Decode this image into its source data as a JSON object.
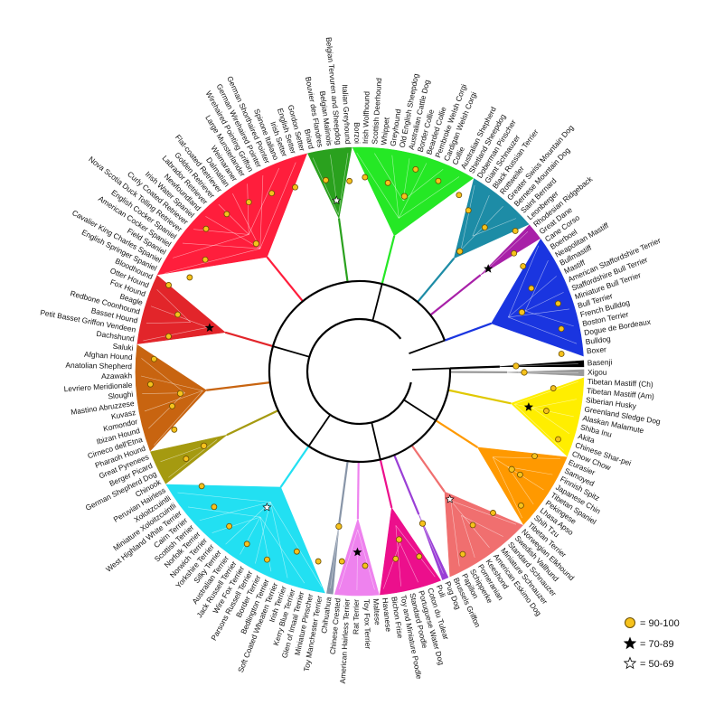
{
  "legend": [
    {
      "symbol": "circle",
      "label": "= 90-100",
      "color": "#f6c21c"
    },
    {
      "symbol": "star-black",
      "label": "= 70-89",
      "color": "#000000"
    },
    {
      "symbol": "star-white",
      "label": "= 50-69",
      "color": "#ffffff"
    }
  ],
  "clades": [
    {
      "color": "#000000",
      "labels": [
        "Basenji"
      ]
    },
    {
      "color": "#9a9a9a",
      "labels": [
        "Xigou"
      ]
    },
    {
      "color": "#ffee00",
      "labels": [
        "Tibetan Mastiff (Ch)",
        "Tibetan Mastiff (Am)",
        "Siberian Husky",
        "Greenland Sledge Dog",
        "Alaskan Malamute",
        "Shiba Inu",
        "Akita",
        "Chinese Shar-pei",
        "Chow Chow"
      ]
    },
    {
      "color": "#ff9900",
      "labels": [
        "Eurasier",
        "Samoyed",
        "Finnish Spitz",
        "Japanese Chin",
        "Tibetan Spaniel",
        "Pekingese",
        "Lhasa Apso",
        "Shih Tzu",
        "Tibetan Terrier"
      ]
    },
    {
      "color": "#f06f6f",
      "labels": [
        "Norwegian Elkhound",
        "Swedish Vallhund",
        "Standard Schnauzer",
        "Miniature Schnauzer",
        "American Eskimo Dog",
        "Keeshond",
        "Pomeranian",
        "Schipperke",
        "Papillon",
        "Brussels Griffon"
      ]
    },
    {
      "color": "#9a3fd6",
      "labels": [
        "Pug Dog"
      ]
    },
    {
      "color": "#ec0f8c",
      "labels": [
        "Puli",
        "Coton du Tulear",
        "Portuguese Water Dog",
        "Standard Poodle",
        "Toy and Miniature Poodle",
        "Bichon Frise",
        "Havanese"
      ]
    },
    {
      "color": "#ee82ee",
      "labels": [
        "Maltese",
        "Toy Fox Terrier",
        "Rat Terrier",
        "American Hairless Terrier",
        "Chinese Crested"
      ]
    },
    {
      "color": "#8895a8",
      "labels": [
        "Chihuahua"
      ]
    },
    {
      "color": "#22e0f2",
      "labels": [
        "Toy Manchester Terrier",
        "Miniature Pinscher",
        "Glen of Imaal Terrier",
        "Kerry Blue Terrier",
        "Irish Terrier",
        "Soft Coated Wheaten Terrier",
        "Bedlington Terrier",
        "Border Terrier",
        "Parsons Russell Terrier",
        "Wire Fox Terrier",
        "Jack Russell Terrier",
        "Australian Terrier",
        "Silky Terrier",
        "Yorkshire Terrier",
        "Norwich Terrier",
        "Norfolk Terrier",
        "Scottish Terrier",
        "Cairn Terrier",
        "West Highland White Terrier",
        "Miniature Xoloitzcuintli",
        "Xoloitzcuintli",
        "Peruvian Hairless"
      ]
    },
    {
      "color": "#a59a10",
      "labels": [
        "Chinook",
        "German Shepherd Dog",
        "Berger Picard",
        "Great Pyrenees"
      ]
    },
    {
      "color": "#c86410",
      "labels": [
        "Pharaoh Hound",
        "Cirneco dell'Etna",
        "Ibizan Hound",
        "Komondor",
        "Kuvasz",
        "Mastino Abruzzese",
        "Sloughi",
        "Levriero Meridionale",
        "Azawakh",
        "Anatolian Shepherd",
        "Afghan Hound",
        "Saluki"
      ]
    },
    {
      "color": "#e2252a",
      "labels": [
        "Dachshund",
        "Petit Basset Griffon Vendeen",
        "Basset Hound",
        "Redbone Coonhound",
        "Beagle",
        "Fox Hound",
        "Otter Hound",
        "Bloodhound"
      ]
    },
    {
      "color": "#ff1e3c",
      "labels": [
        "English Springer Spaniel",
        "Cavalier King Charles Spaniel",
        "Field Spaniel",
        "American Cocker Spaniel",
        "English Cocker Spaniel",
        "Nova Scotia Duck Tolling Retriever",
        "Curly Coated Retriever",
        "Irish Water Spaniel",
        "Newfoundland",
        "Labrador Retriever",
        "Golden Retriever",
        "Flat-coated Retriever",
        "Dalmatian",
        "Weimaraner",
        "Large Munsterlander",
        "Wirehaired Pointing Griffon",
        "German Wirehaired Pointer",
        "German Shorthaired Pointer",
        "Spinone Italiano",
        "Irish Setter",
        "English Setter",
        "Gordon Setter"
      ]
    },
    {
      "color": "#2aa11e",
      "labels": [
        "Briard",
        "Bouvier des Flandres",
        "Belgian Malinois",
        "Belgian Tervuren and Sheepdog",
        "Italian Greyhound"
      ]
    },
    {
      "color": "#25e825",
      "labels": [
        "Borzoi",
        "Irish Wolfhound",
        "Scottish Deerhound",
        "Whippet",
        "Greyhound",
        "Old English Sheepdog",
        "Australian Cattle Dog",
        "Border Collie",
        "Bearded Collie",
        "Pembroke Welsh Corgi",
        "Cardigan Welsh Corgi",
        "Collie",
        "Australian Shepherd",
        "Shetland Sheepdog"
      ]
    },
    {
      "color": "#1d8ca6",
      "labels": [
        "Doberman Pinscher",
        "Giant Schnauzer",
        "Black Russian Terrier",
        "Rottweiler",
        "Greater Swiss Mountain Dog",
        "Bernese Mountain Dog",
        "Saint Bernard",
        "Leonberger"
      ]
    },
    {
      "color": "#a820a8",
      "labels": [
        "Rhodesian Ridgeback",
        "Great Dane"
      ]
    },
    {
      "color": "#1a35e0",
      "labels": [
        "Cane Corso",
        "Boerboel",
        "Neapolitan Mastiff",
        "Bullmastiff",
        "Mastiff",
        "American Staffordshire Terrier",
        "Staffordshire Bull Terrier",
        "Miniature Bull Terrier",
        "Bull Terrier",
        "French Bulldog",
        "Boston Terrier",
        "Dogue de Bordeaux",
        "Bulldog",
        "Boxer"
      ]
    }
  ]
}
